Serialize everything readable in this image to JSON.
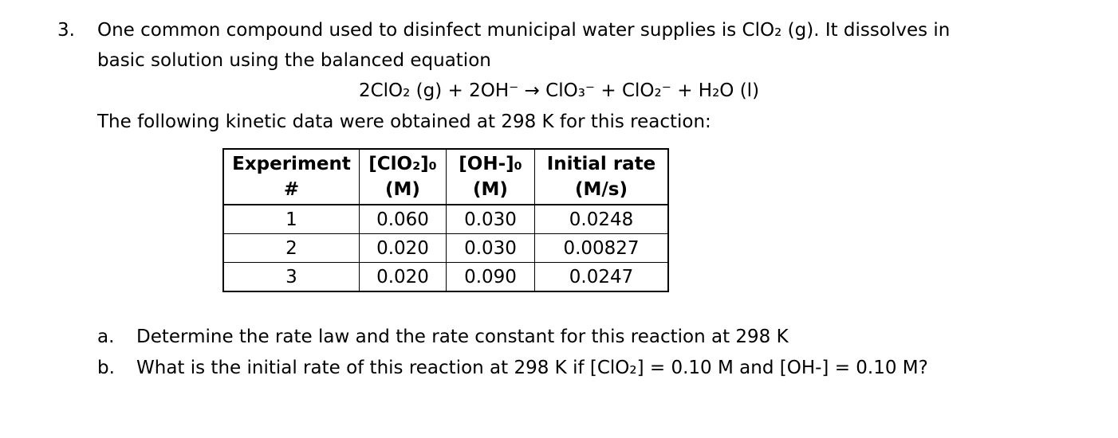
{
  "problem": {
    "number": "3.",
    "intro_line1": "One common compound used to disinfect municipal water supplies is ClO₂ (g). It dissolves in",
    "intro_line2": "basic solution using the balanced equation",
    "equation": "2ClO₂ (g) + 2OH⁻ → ClO₃⁻ + ClO₂⁻ + H₂O (l)",
    "data_intro": "The following kinetic data were obtained at 298 K for this reaction:"
  },
  "table": {
    "headers": [
      {
        "line1": "Experiment",
        "line2": "#"
      },
      {
        "line1": "[ClO₂]₀",
        "line2": "(M)"
      },
      {
        "line1": "[OH-]₀",
        "line2": "(M)"
      },
      {
        "line1": "Initial rate",
        "line2": "(M/s)"
      }
    ],
    "rows": [
      [
        "1",
        "0.060",
        "0.030",
        "0.0248"
      ],
      [
        "2",
        "0.020",
        "0.030",
        "0.00827"
      ],
      [
        "3",
        "0.020",
        "0.090",
        "0.0247"
      ]
    ]
  },
  "questions": [
    {
      "letter": "a.",
      "text": "Determine the rate law and the rate constant for this reaction at 298 K"
    },
    {
      "letter": "b.",
      "text": "What is the initial rate of this reaction at 298 K if [ClO₂] = 0.10 M and [OH-] = 0.10 M?"
    }
  ]
}
